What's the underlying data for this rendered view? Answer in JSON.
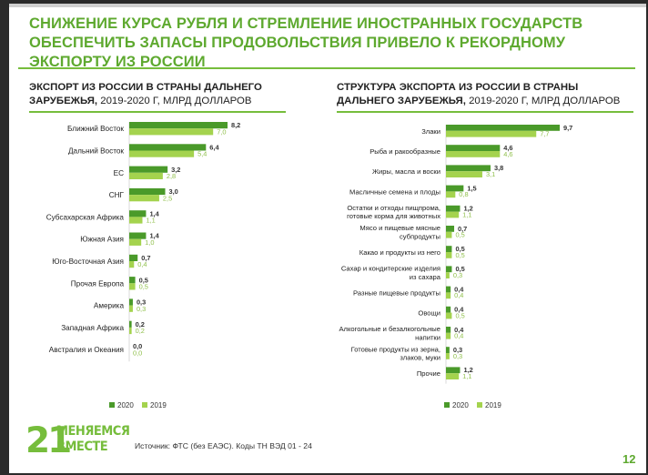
{
  "title": "Снижение курса рубля и стремление иностранных государств обеспечить запасы продовольствия привело к рекордному экспорту из России",
  "footer": {
    "source": "Источник: ФТС (без ЕАЭС). Коды ТН ВЭД 01 - 24",
    "page_number": "12",
    "logo_number": "21",
    "logo_line1": "МЕНЯЕМСЯ",
    "logo_line2": "ВМЕСТЕ"
  },
  "colors": {
    "series_2020": "#4a9a2a",
    "series_2019": "#a4d34e",
    "accent": "#76bd3c"
  },
  "chart_data": [
    {
      "type": "bar",
      "orientation": "horizontal",
      "title_bold": "Экспорт из России в страны дальнего зарубежья,",
      "title_rest": " 2019-2020 г, млрд долларов",
      "categories": [
        "Ближний Восток",
        "Дальний Восток",
        "ЕС",
        "СНГ",
        "Субсахарская Африка",
        "Южная Азия",
        "Юго-Восточная Азия",
        "Прочая Европа",
        "Америка",
        "Западная Африка",
        "Австралия и Океания"
      ],
      "series": [
        {
          "name": "2020",
          "values": [
            8.2,
            6.4,
            3.2,
            3.0,
            1.4,
            1.4,
            0.7,
            0.5,
            0.3,
            0.2,
            0.0
          ],
          "labels": [
            "8,2",
            "6,4",
            "3,2",
            "3,0",
            "1,4",
            "1,4",
            "0,7",
            "0,5",
            "0,3",
            "0,2",
            "0,0"
          ]
        },
        {
          "name": "2019",
          "values": [
            7.0,
            5.4,
            2.8,
            2.5,
            1.1,
            1.0,
            0.4,
            0.5,
            0.3,
            0.2,
            0.0
          ],
          "labels": [
            "7,0",
            "5,4",
            "2,8",
            "2,5",
            "1,1",
            "1,0",
            "0,4",
            "0,5",
            "0,3",
            "0,2",
            "0,0"
          ]
        }
      ],
      "xlim": [
        0,
        8.2
      ],
      "legend": [
        "2020",
        "2019"
      ]
    },
    {
      "type": "bar",
      "orientation": "horizontal",
      "title_bold": "Структура экспорта из России в страны дальнего зарубежья,",
      "title_rest": " 2019-2020 г, млрд долларов",
      "categories": [
        [
          "Злаки"
        ],
        [
          "Рыба и ракообразные"
        ],
        [
          "Жиры, масла и воски"
        ],
        [
          "Масличные семена и плоды"
        ],
        [
          "Остатки и отходы пищпрома,",
          "готовые корма для животных"
        ],
        [
          "Мясо и пищевые мясные",
          "субпродукты"
        ],
        [
          "Какао и продукты из него"
        ],
        [
          "Сахар и кондитерские изделия",
          "из сахара"
        ],
        [
          "Разные пищевые продукты"
        ],
        [
          "Овощи"
        ],
        [
          "Алкогольные и безалкогольные",
          "напитки"
        ],
        [
          "Готовые продукты из зерна,",
          "злаков, муки"
        ],
        [
          "Прочие"
        ]
      ],
      "series": [
        {
          "name": "2020",
          "values": [
            9.7,
            4.6,
            3.8,
            1.5,
            1.2,
            0.7,
            0.5,
            0.5,
            0.4,
            0.4,
            0.4,
            0.3,
            1.2
          ],
          "labels": [
            "9,7",
            "4,6",
            "3,8",
            "1,5",
            "1,2",
            "0,7",
            "0,5",
            "0,5",
            "0,4",
            "0,4",
            "0,4",
            "0,3",
            "1,2"
          ]
        },
        {
          "name": "2019",
          "values": [
            7.7,
            4.6,
            3.1,
            0.8,
            1.1,
            0.5,
            0.5,
            0.3,
            0.4,
            0.5,
            0.4,
            0.3,
            1.1
          ],
          "labels": [
            "7,7",
            "4,6",
            "3,1",
            "0,8",
            "1,1",
            "0,5",
            "0,5",
            "0,3",
            "0,4",
            "0,5",
            "0,4",
            "0,3",
            "1,1"
          ]
        }
      ],
      "xlim": [
        0,
        9.7
      ],
      "legend": [
        "2020",
        "2019"
      ]
    }
  ]
}
